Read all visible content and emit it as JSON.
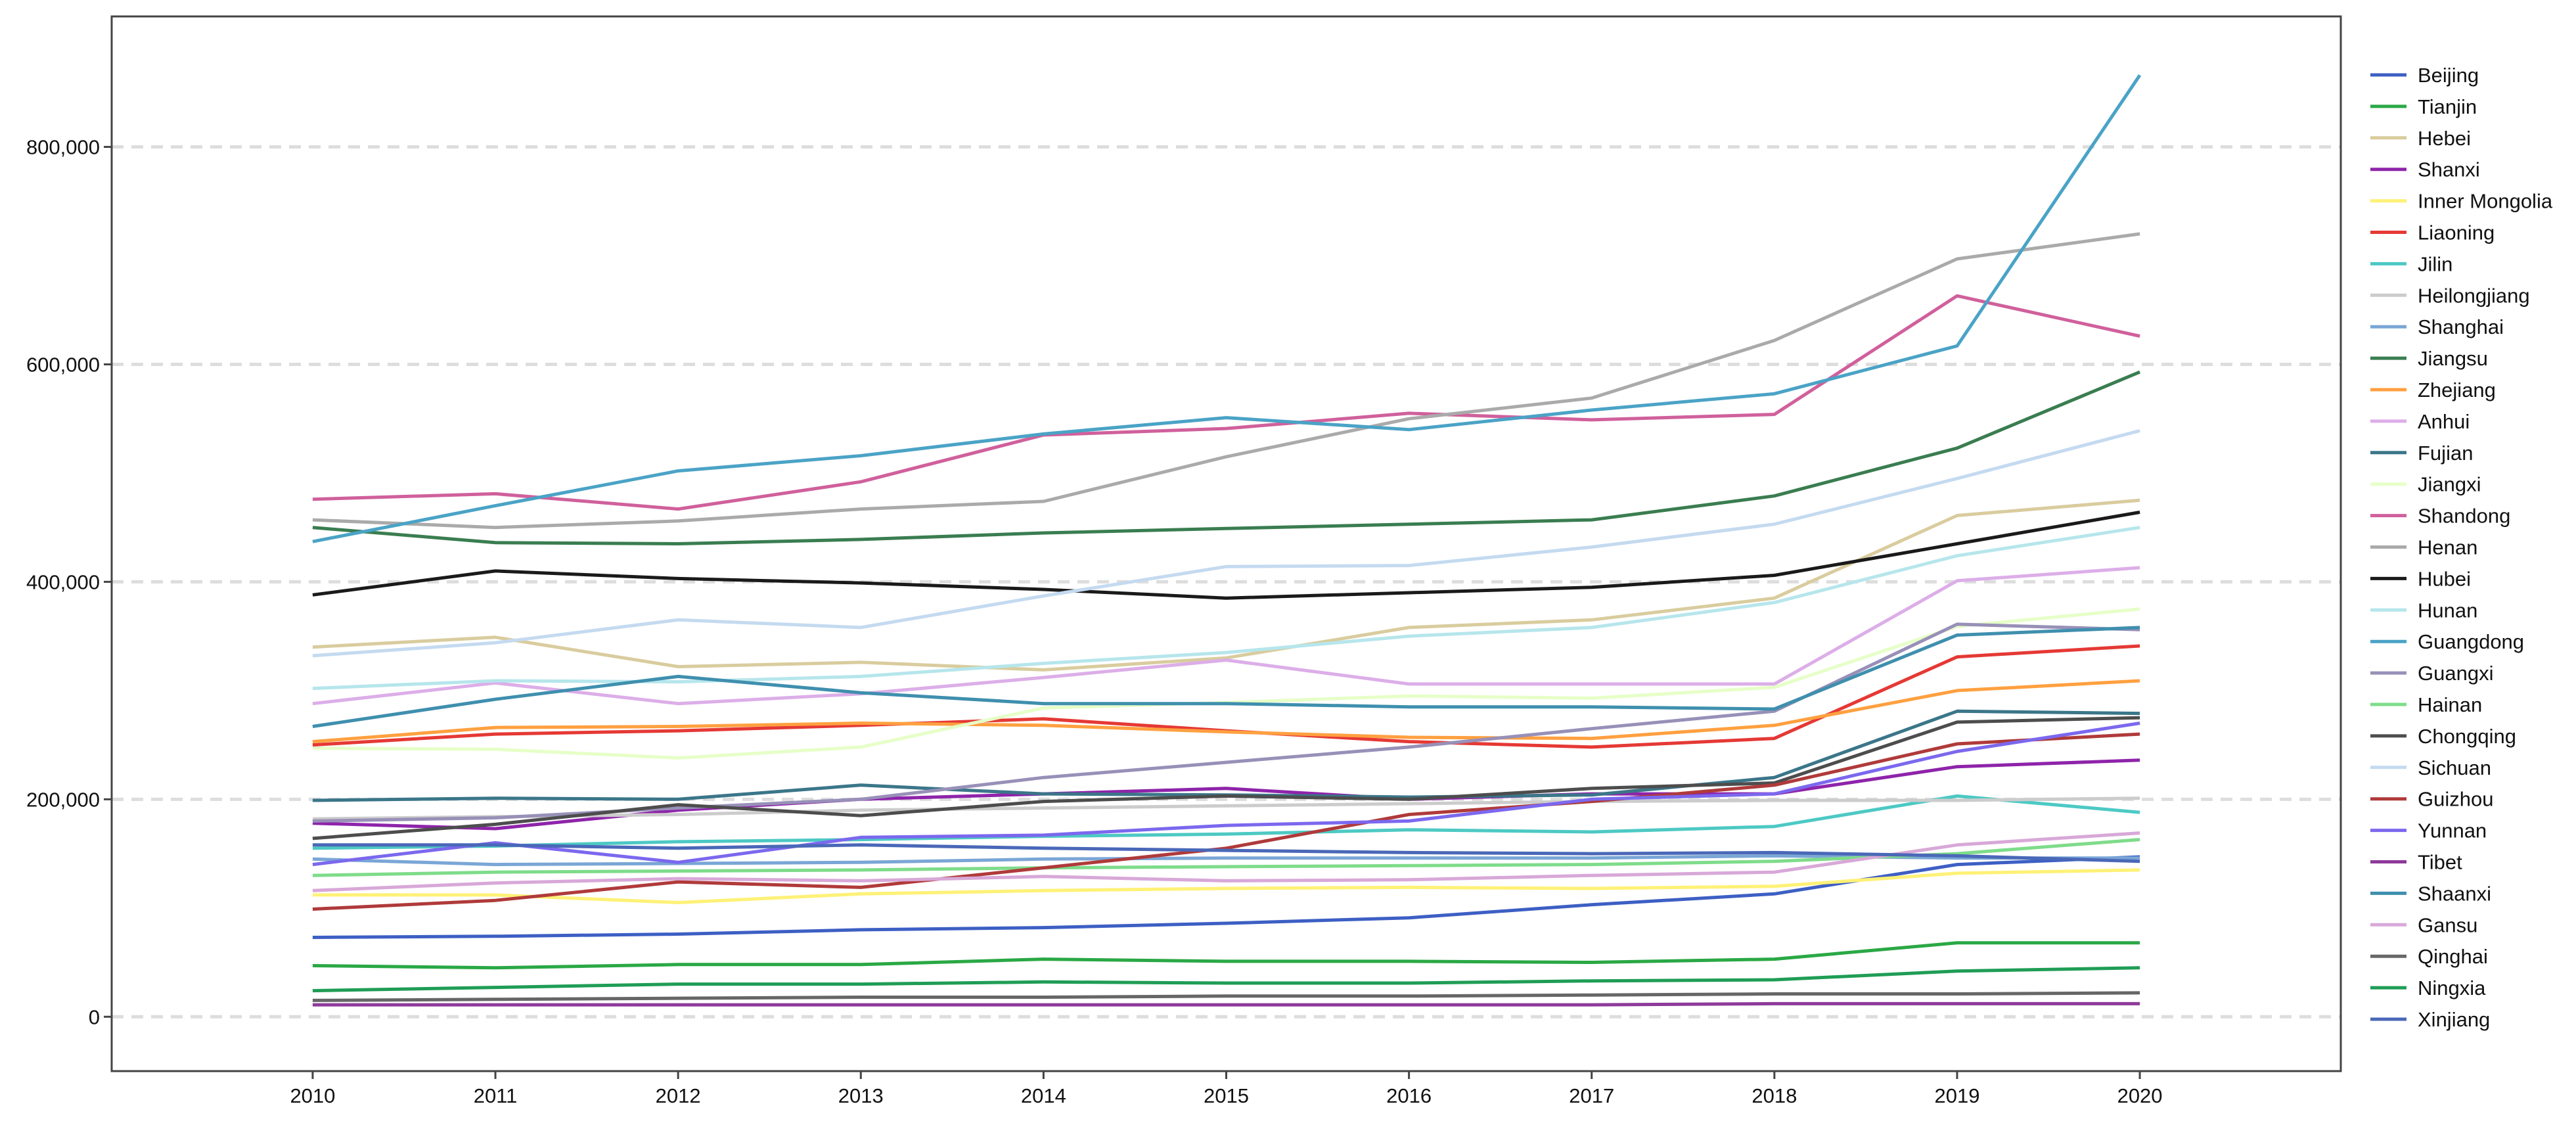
{
  "chart_data": {
    "type": "line",
    "title": "",
    "xlabel": "",
    "ylabel": "",
    "x": [
      2010,
      2011,
      2012,
      2013,
      2014,
      2015,
      2016,
      2017,
      2018,
      2019,
      2020
    ],
    "x_tick_labels": [
      "2010",
      "2011",
      "2012",
      "2013",
      "2014",
      "2015",
      "2016",
      "2017",
      "2018",
      "2019",
      "2020"
    ],
    "xlim": [
      2008.9,
      2021.1
    ],
    "ylim": [
      -50000,
      920000
    ],
    "y_ticks": [
      0,
      200000,
      400000,
      600000,
      800000
    ],
    "y_tick_labels": [
      "0",
      "200,000",
      "400,000",
      "600,000",
      "800,000"
    ],
    "grid": "horizontal-dashed",
    "legend_position": "right",
    "series": [
      {
        "name": "Beijing",
        "color": "#3d5fc4",
        "values": [
          73000,
          74000,
          76000,
          80000,
          82000,
          86000,
          91000,
          103000,
          113000,
          140000,
          147000
        ]
      },
      {
        "name": "Tianjin",
        "color": "#2aa845",
        "values": [
          47000,
          45000,
          48000,
          48000,
          53000,
          51000,
          51000,
          50000,
          53000,
          68000,
          68000
        ]
      },
      {
        "name": "Hebei",
        "color": "#d9cc9e",
        "values": [
          340000,
          349000,
          322000,
          326000,
          319000,
          330000,
          358000,
          365000,
          385000,
          461000,
          475000
        ]
      },
      {
        "name": "Shanxi",
        "color": "#8e24aa",
        "values": [
          178000,
          173000,
          190000,
          200000,
          205000,
          210000,
          200000,
          205000,
          205000,
          230000,
          236000
        ]
      },
      {
        "name": "Inner Mongolia",
        "color": "#fff176",
        "values": [
          112000,
          112000,
          105000,
          113000,
          116000,
          118000,
          119000,
          118000,
          120000,
          132000,
          135000
        ]
      },
      {
        "name": "Liaoning",
        "color": "#e53935",
        "values": [
          250000,
          260000,
          263000,
          268000,
          274000,
          263000,
          253000,
          248000,
          256000,
          331000,
          341000
        ]
      },
      {
        "name": "Jilin",
        "color": "#4dc9c4",
        "values": [
          155000,
          157000,
          161000,
          163000,
          166000,
          168000,
          172000,
          170000,
          175000,
          203000,
          188000
        ]
      },
      {
        "name": "Heilongjiang",
        "color": "#cccccc",
        "values": [
          182000,
          184000,
          186000,
          190000,
          192000,
          194000,
          196000,
          198000,
          199000,
          199000,
          201000
        ]
      },
      {
        "name": "Shanghai",
        "color": "#7aa6d6",
        "values": [
          145000,
          140000,
          141000,
          142000,
          145000,
          146000,
          146000,
          146000,
          148000,
          146000,
          146000
        ]
      },
      {
        "name": "Jiangsu",
        "color": "#3a7d50",
        "values": [
          450000,
          436000,
          435000,
          439000,
          445000,
          449000,
          453000,
          457000,
          479000,
          523000,
          593000
        ]
      },
      {
        "name": "Zhejiang",
        "color": "#ffa040",
        "values": [
          253000,
          266000,
          267000,
          270000,
          268000,
          262000,
          257000,
          256000,
          268000,
          300000,
          309000
        ]
      },
      {
        "name": "Anhui",
        "color": "#dcaee8",
        "values": [
          288000,
          307000,
          288000,
          297000,
          312000,
          328000,
          306000,
          306000,
          306000,
          401000,
          413000
        ]
      },
      {
        "name": "Fujian",
        "color": "#3b7689",
        "values": [
          199000,
          201000,
          200000,
          213000,
          205000,
          204000,
          202000,
          204000,
          220000,
          281000,
          279000
        ]
      },
      {
        "name": "Jiangxi",
        "color": "#e6ffc8",
        "values": [
          247000,
          246000,
          238000,
          248000,
          284000,
          289000,
          295000,
          293000,
          303000,
          359000,
          375000
        ]
      },
      {
        "name": "Shandong",
        "color": "#d0609c",
        "values": [
          476000,
          481000,
          467000,
          492000,
          535000,
          541000,
          555000,
          549000,
          554000,
          663000,
          626000
        ]
      },
      {
        "name": "Henan",
        "color": "#aaaaaa",
        "values": [
          457000,
          450000,
          456000,
          467000,
          474000,
          515000,
          550000,
          569000,
          622000,
          697000,
          720000
        ]
      },
      {
        "name": "Hubei",
        "color": "#1a1a1a",
        "values": [
          388000,
          410000,
          403000,
          399000,
          393000,
          385000,
          390000,
          395000,
          406000,
          435000,
          464000
        ]
      },
      {
        "name": "Hunan",
        "color": "#b6e6ec",
        "values": [
          302000,
          309000,
          308000,
          313000,
          325000,
          335000,
          350000,
          358000,
          381000,
          424000,
          450000
        ]
      },
      {
        "name": "Guangdong",
        "color": "#4aa3c6",
        "values": [
          437000,
          470000,
          502000,
          516000,
          536000,
          551000,
          540000,
          558000,
          573000,
          617000,
          866000
        ]
      },
      {
        "name": "Guangxi",
        "color": "#9890b8",
        "values": [
          180000,
          183000,
          192000,
          200000,
          220000,
          234000,
          248000,
          265000,
          281000,
          361000,
          356000
        ]
      },
      {
        "name": "Hainan",
        "color": "#7edc8a",
        "values": [
          130000,
          133000,
          134000,
          135000,
          137000,
          138000,
          139000,
          140000,
          143000,
          150000,
          163000
        ]
      },
      {
        "name": "Chongqing",
        "color": "#4d4d4d",
        "values": [
          164000,
          177000,
          195000,
          185000,
          198000,
          203000,
          200000,
          210000,
          215000,
          271000,
          275000
        ]
      },
      {
        "name": "Sichuan",
        "color": "#c4daf0",
        "values": [
          332000,
          344000,
          365000,
          358000,
          387000,
          414000,
          415000,
          432000,
          453000,
          495000,
          539000
        ]
      },
      {
        "name": "Guizhou",
        "color": "#b03a3a",
        "values": [
          99000,
          107000,
          124000,
          119000,
          137000,
          155000,
          186000,
          198000,
          213000,
          251000,
          260000
        ]
      },
      {
        "name": "Yunnan",
        "color": "#7b68ee",
        "values": [
          140000,
          160000,
          142000,
          165000,
          167000,
          176000,
          180000,
          200000,
          205000,
          244000,
          270000
        ]
      },
      {
        "name": "Tibet",
        "color": "#8e3a9a",
        "values": [
          11000,
          11000,
          11000,
          11000,
          11000,
          11000,
          11000,
          11000,
          12000,
          12000,
          12000
        ]
      },
      {
        "name": "Shaanxi",
        "color": "#3f8fae",
        "values": [
          267000,
          292000,
          313000,
          298000,
          288000,
          288000,
          285000,
          285000,
          283000,
          351000,
          358000
        ]
      },
      {
        "name": "Gansu",
        "color": "#d8a8d8",
        "values": [
          116000,
          123000,
          127000,
          125000,
          129000,
          125000,
          126000,
          130000,
          133000,
          158000,
          169000
        ]
      },
      {
        "name": "Qinghai",
        "color": "#666666",
        "values": [
          15000,
          16000,
          17000,
          18000,
          18000,
          19000,
          19000,
          20000,
          21000,
          21000,
          22000
        ]
      },
      {
        "name": "Ningxia",
        "color": "#1f9d55",
        "values": [
          24000,
          27000,
          30000,
          30000,
          32000,
          31000,
          31000,
          33000,
          34000,
          42000,
          45000
        ]
      },
      {
        "name": "Xinjiang",
        "color": "#4a68b8",
        "values": [
          158000,
          158000,
          155000,
          158000,
          155000,
          153000,
          151000,
          150000,
          151000,
          148000,
          143000
        ]
      }
    ]
  }
}
